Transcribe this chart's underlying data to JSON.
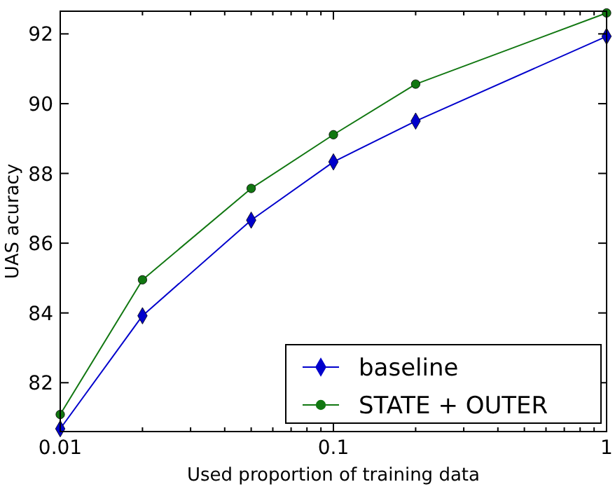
{
  "chart_data": {
    "type": "line",
    "xlabel": "Used proportion of training data",
    "ylabel": "UAS acuracy",
    "log": "x",
    "xlim": [
      0.01,
      1
    ],
    "ylim": [
      80.6,
      92.65
    ],
    "xticks": [
      {
        "value": 0.01,
        "label": "0.01"
      },
      {
        "value": 0.02,
        "label": null
      },
      {
        "value": 0.03,
        "label": null
      },
      {
        "value": 0.04,
        "label": null
      },
      {
        "value": 0.05,
        "label": null
      },
      {
        "value": 0.06,
        "label": null
      },
      {
        "value": 0.07,
        "label": null
      },
      {
        "value": 0.08,
        "label": null
      },
      {
        "value": 0.09,
        "label": null
      },
      {
        "value": 0.1,
        "label": "0.1"
      },
      {
        "value": 0.2,
        "label": null
      },
      {
        "value": 0.3,
        "label": null
      },
      {
        "value": 0.4,
        "label": null
      },
      {
        "value": 0.5,
        "label": null
      },
      {
        "value": 0.6,
        "label": null
      },
      {
        "value": 0.7,
        "label": null
      },
      {
        "value": 0.8,
        "label": null
      },
      {
        "value": 0.9,
        "label": null
      },
      {
        "value": 1,
        "label": "1"
      }
    ],
    "yticks": [
      82,
      84,
      86,
      88,
      90,
      92
    ],
    "grid": false,
    "legend": "bottom right",
    "x": [
      0.01,
      0.02,
      0.05,
      0.1,
      0.2,
      1
    ],
    "series": [
      {
        "name": "baseline",
        "color": "#0000cc",
        "marker": "diamond",
        "values": [
          80.68,
          83.92,
          86.66,
          88.33,
          89.5,
          91.93
        ]
      },
      {
        "name": "STATE + OUTER",
        "color": "#117711",
        "marker": "circle",
        "values": [
          81.09,
          84.95,
          87.57,
          89.11,
          90.56,
          92.6
        ]
      }
    ]
  }
}
